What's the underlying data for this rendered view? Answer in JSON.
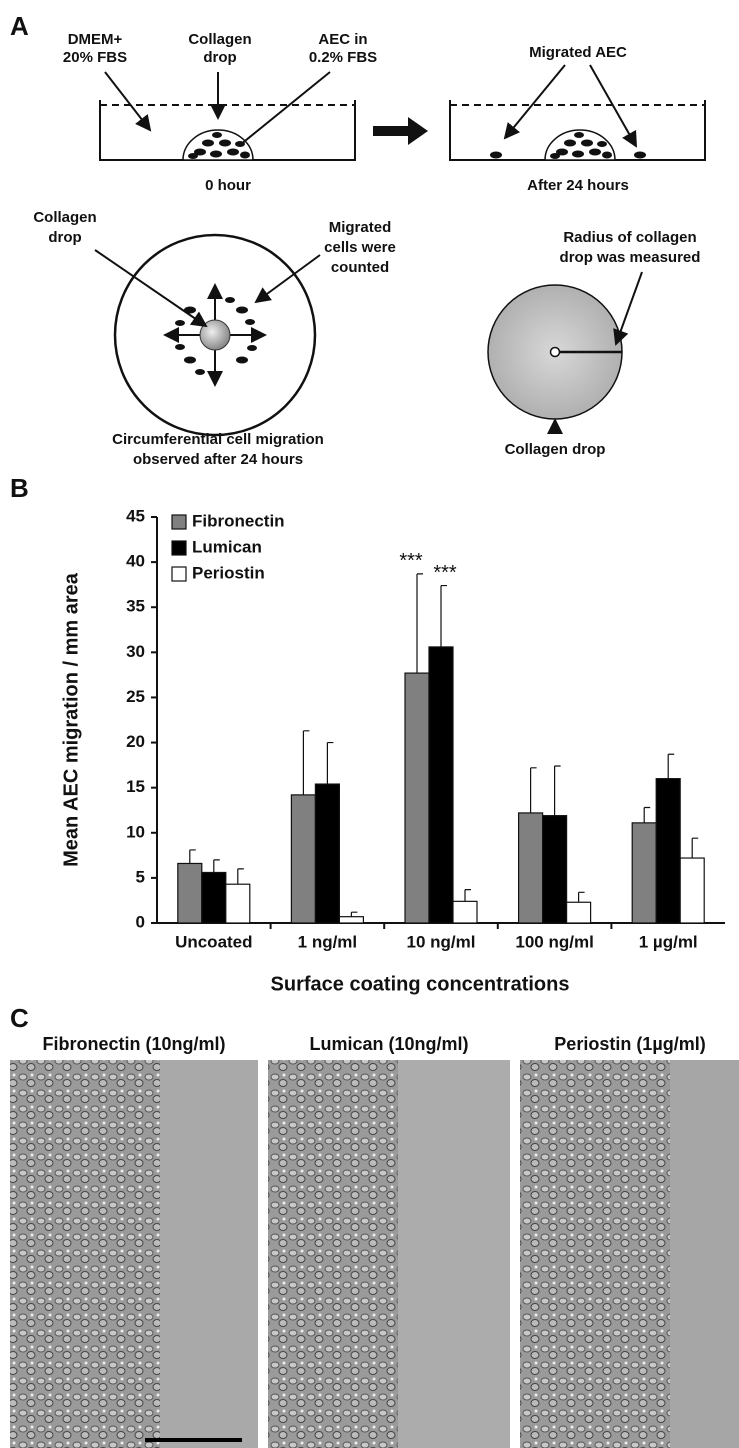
{
  "panel_a": {
    "label": "A",
    "top_left": {
      "medium": [
        "DMEM+",
        "20% FBS"
      ],
      "drop": [
        "Collagen",
        "drop"
      ],
      "cells": [
        "AEC in",
        "0.2% FBS"
      ],
      "caption": "0 hour"
    },
    "top_right": {
      "migrated": "Migrated AEC",
      "caption": "After 24 hours"
    },
    "bottom_left": {
      "drop": [
        "Collagen",
        "drop"
      ],
      "counted": [
        "Migrated",
        "cells were",
        "counted"
      ],
      "caption": [
        "Circumferential cell migration",
        "observed after 24 hours"
      ]
    },
    "bottom_right": {
      "radius": [
        "Radius of collagen",
        "drop was measured"
      ],
      "caption": "Collagen drop"
    }
  },
  "chart_data": {
    "type": "bar",
    "label": "B",
    "y_label": "Mean AEC migration / mm area",
    "x_label": "Surface coating concentrations",
    "categories": [
      "Uncoated",
      "1 ng/ml",
      "10 ng/ml",
      "100 ng/ml",
      "1 µg/ml"
    ],
    "series": [
      {
        "name": "Fibronectin",
        "color": "#808080",
        "values": [
          6.6,
          14.2,
          27.7,
          12.2,
          11.1
        ],
        "errors": [
          1.5,
          7.1,
          11.0,
          5.0,
          1.7
        ]
      },
      {
        "name": "Lumican",
        "color": "#000000",
        "values": [
          5.6,
          15.4,
          30.6,
          11.9,
          16.0
        ],
        "errors": [
          1.4,
          4.6,
          6.8,
          5.5,
          2.7
        ]
      },
      {
        "name": "Periostin",
        "color": "#ffffff",
        "values": [
          4.3,
          0.7,
          2.4,
          2.3,
          7.2
        ],
        "errors": [
          1.7,
          0.5,
          1.3,
          1.1,
          2.2
        ]
      }
    ],
    "ylim": [
      0,
      45
    ],
    "yticks": [
      0,
      5,
      10,
      15,
      20,
      25,
      30,
      35,
      40,
      45
    ],
    "legend": "upper left",
    "annotations": [
      "***",
      "***"
    ]
  },
  "panel_c": {
    "label": "C",
    "images": [
      {
        "title": "Fibronectin (10ng/ml)"
      },
      {
        "title": "Lumican (10ng/ml)"
      },
      {
        "title": "Periostin (1µg/ml)"
      }
    ]
  }
}
